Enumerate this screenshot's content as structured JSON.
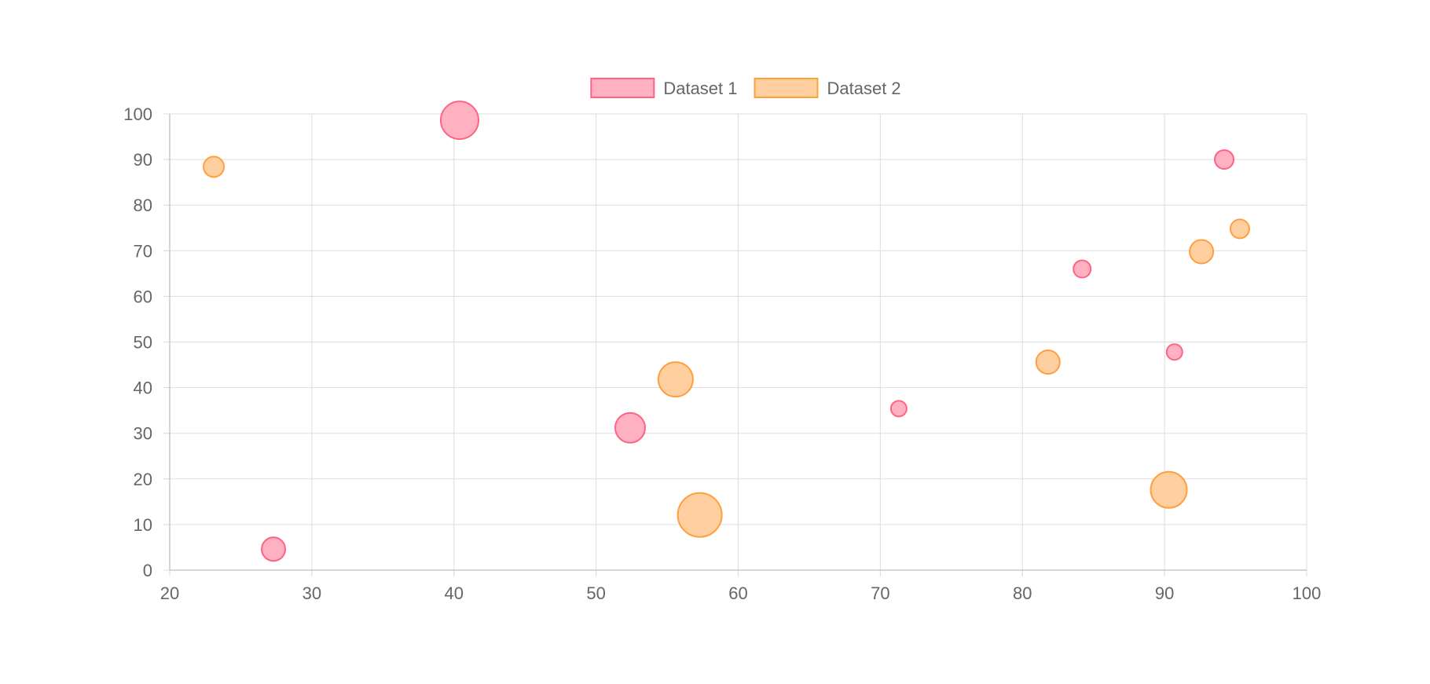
{
  "chart_data": {
    "type": "bubble",
    "title": "",
    "xlabel": "",
    "ylabel": "",
    "xlim": [
      20,
      100
    ],
    "ylim": [
      0,
      100
    ],
    "x_ticks": [
      20,
      30,
      40,
      50,
      60,
      70,
      80,
      90,
      100
    ],
    "y_ticks": [
      0,
      10,
      20,
      30,
      40,
      50,
      60,
      70,
      80,
      90,
      100
    ],
    "grid": true,
    "legend_position": "top-center",
    "series": [
      {
        "name": "Dataset 1",
        "border_color": "#ff6384",
        "fill_color": "#ffb1c1",
        "points": [
          {
            "x": 40.4,
            "y": 98.6,
            "r": 24
          },
          {
            "x": 94.2,
            "y": 90,
            "r": 12
          },
          {
            "x": 84.2,
            "y": 66,
            "r": 11
          },
          {
            "x": 90.7,
            "y": 47.8,
            "r": 10
          },
          {
            "x": 71.3,
            "y": 35.4,
            "r": 10
          },
          {
            "x": 52.4,
            "y": 31.2,
            "r": 19
          },
          {
            "x": 27.3,
            "y": 4.6,
            "r": 15
          }
        ]
      },
      {
        "name": "Dataset 2",
        "border_color": "#ff9f40",
        "fill_color": "#ffcf9f",
        "points": [
          {
            "x": 23.1,
            "y": 88.4,
            "r": 13
          },
          {
            "x": 95.3,
            "y": 74.8,
            "r": 12
          },
          {
            "x": 92.6,
            "y": 69.8,
            "r": 15
          },
          {
            "x": 81.8,
            "y": 45.6,
            "r": 15
          },
          {
            "x": 55.6,
            "y": 41.8,
            "r": 22
          },
          {
            "x": 57.3,
            "y": 12.1,
            "r": 28
          },
          {
            "x": 90.3,
            "y": 17.6,
            "r": 23
          }
        ]
      }
    ]
  }
}
